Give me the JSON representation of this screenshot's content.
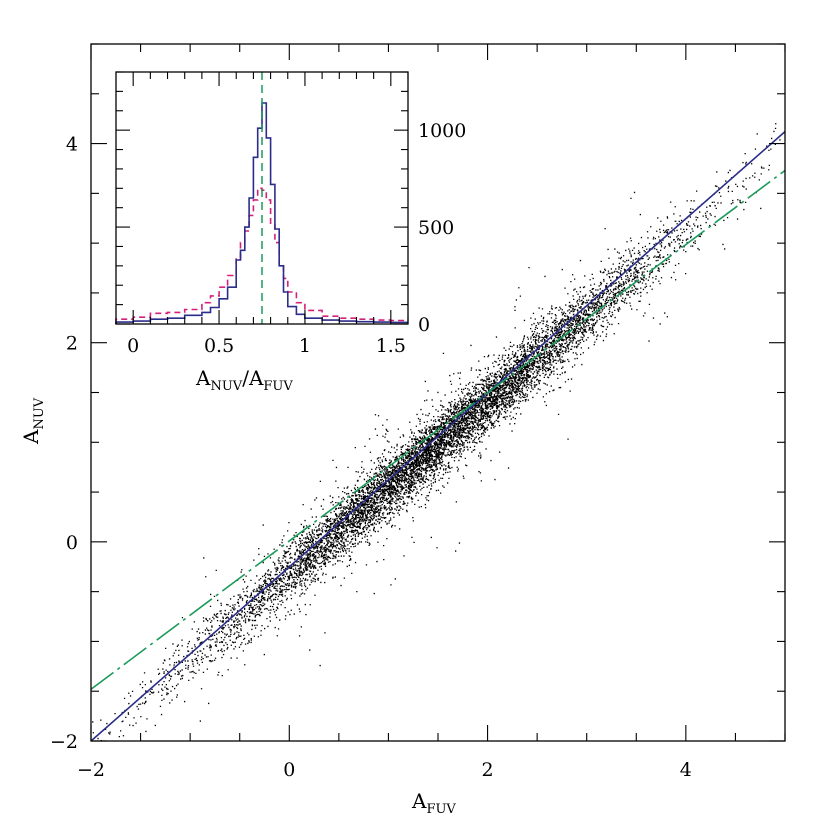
{
  "chart_data": [
    {
      "type": "scatter",
      "title": "",
      "xlabel": {
        "main": "A",
        "sub": "FUV"
      },
      "ylabel": {
        "main": "A",
        "sub": "NUV"
      },
      "xlim": [
        -2,
        5
      ],
      "ylim": [
        -2,
        5
      ],
      "xticks": [
        "−2",
        "0",
        "2",
        "4"
      ],
      "yticks": [
        "−2",
        "0",
        "2",
        "4"
      ],
      "grid": false,
      "legend": "none",
      "points": {
        "count": 9000,
        "color": "#000000",
        "distribution": {
          "x_center": 1.5,
          "x_spread": 1.2,
          "slope": 0.86,
          "intercept": -0.3,
          "scatter": 0.15
        }
      },
      "series": [
        {
          "style": "solid",
          "color": "#2b2d8a",
          "x": [
            -2,
            5
          ],
          "y": [
            -2,
            4.12
          ]
        },
        {
          "style": "long-dash",
          "color": "#1a9a5a",
          "x": [
            -2,
            5
          ],
          "y": [
            -1.48,
            3.73
          ]
        }
      ]
    },
    {
      "type": "histogram",
      "title": "",
      "xlabel": {
        "main": "A",
        "sep": "/",
        "sub1": "NUV",
        "sub2": "FUV"
      },
      "ylabel": "",
      "xlim": [
        -0.1,
        1.6
      ],
      "ylim": [
        0,
        1300
      ],
      "xticks": [
        "0",
        "0.5",
        "1",
        "1.5"
      ],
      "yticks": [
        "0",
        "500",
        "1000"
      ],
      "vline": {
        "x": 0.75,
        "color": "#1a9a5a",
        "style": "dashed"
      },
      "series": [
        {
          "style": "solid",
          "color": "#2b2d8a",
          "bin_edges": [
            -0.1,
            0.0,
            0.1,
            0.2,
            0.3,
            0.4,
            0.45,
            0.5,
            0.55,
            0.6,
            0.625,
            0.65,
            0.675,
            0.7,
            0.725,
            0.75,
            0.775,
            0.8,
            0.825,
            0.85,
            0.875,
            0.9,
            0.95,
            1.0,
            1.1,
            1.2,
            1.3,
            1.4,
            1.5,
            1.6
          ],
          "counts": [
            10,
            15,
            25,
            30,
            45,
            60,
            85,
            130,
            190,
            330,
            380,
            500,
            650,
            860,
            1010,
            1140,
            960,
            720,
            490,
            300,
            165,
            90,
            50,
            30,
            20,
            15,
            12,
            10,
            8
          ]
        },
        {
          "style": "dashed",
          "color": "#d4207a",
          "bin_edges": [
            -0.1,
            0.0,
            0.1,
            0.2,
            0.3,
            0.4,
            0.45,
            0.5,
            0.55,
            0.6,
            0.625,
            0.65,
            0.675,
            0.7,
            0.725,
            0.75,
            0.775,
            0.8,
            0.825,
            0.85,
            0.875,
            0.9,
            0.95,
            1.0,
            1.1,
            1.2,
            1.3,
            1.4,
            1.5,
            1.6
          ],
          "counts": [
            25,
            35,
            55,
            60,
            75,
            110,
            145,
            190,
            250,
            340,
            420,
            480,
            560,
            640,
            700,
            690,
            640,
            520,
            420,
            300,
            235,
            165,
            110,
            70,
            40,
            30,
            25,
            20,
            18
          ]
        }
      ]
    }
  ]
}
